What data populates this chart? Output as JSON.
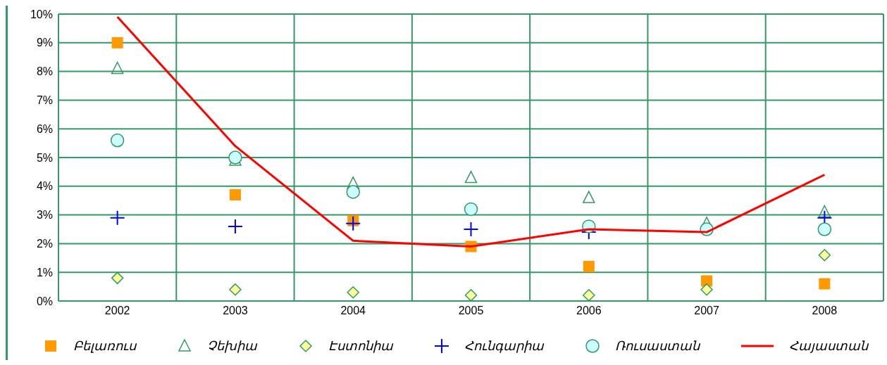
{
  "chart_data": {
    "type": "scatter",
    "categories": [
      "2002",
      "2003",
      "2004",
      "2005",
      "2006",
      "2007",
      "2008"
    ],
    "ylim": [
      0,
      10
    ],
    "yticks": [
      {
        "value": 0,
        "label": "0%"
      },
      {
        "value": 1,
        "label": "1%"
      },
      {
        "value": 2,
        "label": "2%"
      },
      {
        "value": 3,
        "label": "3%"
      },
      {
        "value": 4,
        "label": "4%"
      },
      {
        "value": 5,
        "label": "5%"
      },
      {
        "value": 6,
        "label": "6%"
      },
      {
        "value": 7,
        "label": "7%"
      },
      {
        "value": 8,
        "label": "8%"
      },
      {
        "value": 9,
        "label": "9%"
      },
      {
        "value": 10,
        "label": "10%"
      }
    ],
    "grid": true,
    "legend": "bottom",
    "series": [
      {
        "name": "Բելառուս",
        "marker": "square",
        "color": "#ff9900",
        "values": [
          9.0,
          3.7,
          2.8,
          1.9,
          1.2,
          0.7,
          0.6
        ]
      },
      {
        "name": "Չեխիա",
        "marker": "triangle",
        "color": "#339966",
        "values": [
          8.1,
          4.9,
          4.1,
          4.3,
          3.6,
          2.7,
          3.1
        ]
      },
      {
        "name": "Էստոնիա",
        "marker": "diamond",
        "color": "#ffff99",
        "values": [
          0.8,
          0.4,
          0.3,
          0.2,
          0.2,
          0.4,
          1.6
        ]
      },
      {
        "name": "Հունգարիա",
        "marker": "cross",
        "color": "#0000ff",
        "values": [
          2.9,
          2.6,
          2.7,
          2.5,
          2.4,
          null,
          2.9
        ]
      },
      {
        "name": "Ռուսաստան",
        "marker": "circle",
        "color": "#ccffff",
        "values": [
          5.6,
          5.0,
          3.8,
          3.2,
          2.6,
          2.5,
          2.5
        ]
      },
      {
        "name": "Հայաստան",
        "type": "line",
        "marker": "none",
        "color": "#ff0000",
        "values": [
          9.9,
          5.4,
          2.1,
          1.9,
          2.5,
          2.4,
          4.4
        ]
      }
    ]
  }
}
